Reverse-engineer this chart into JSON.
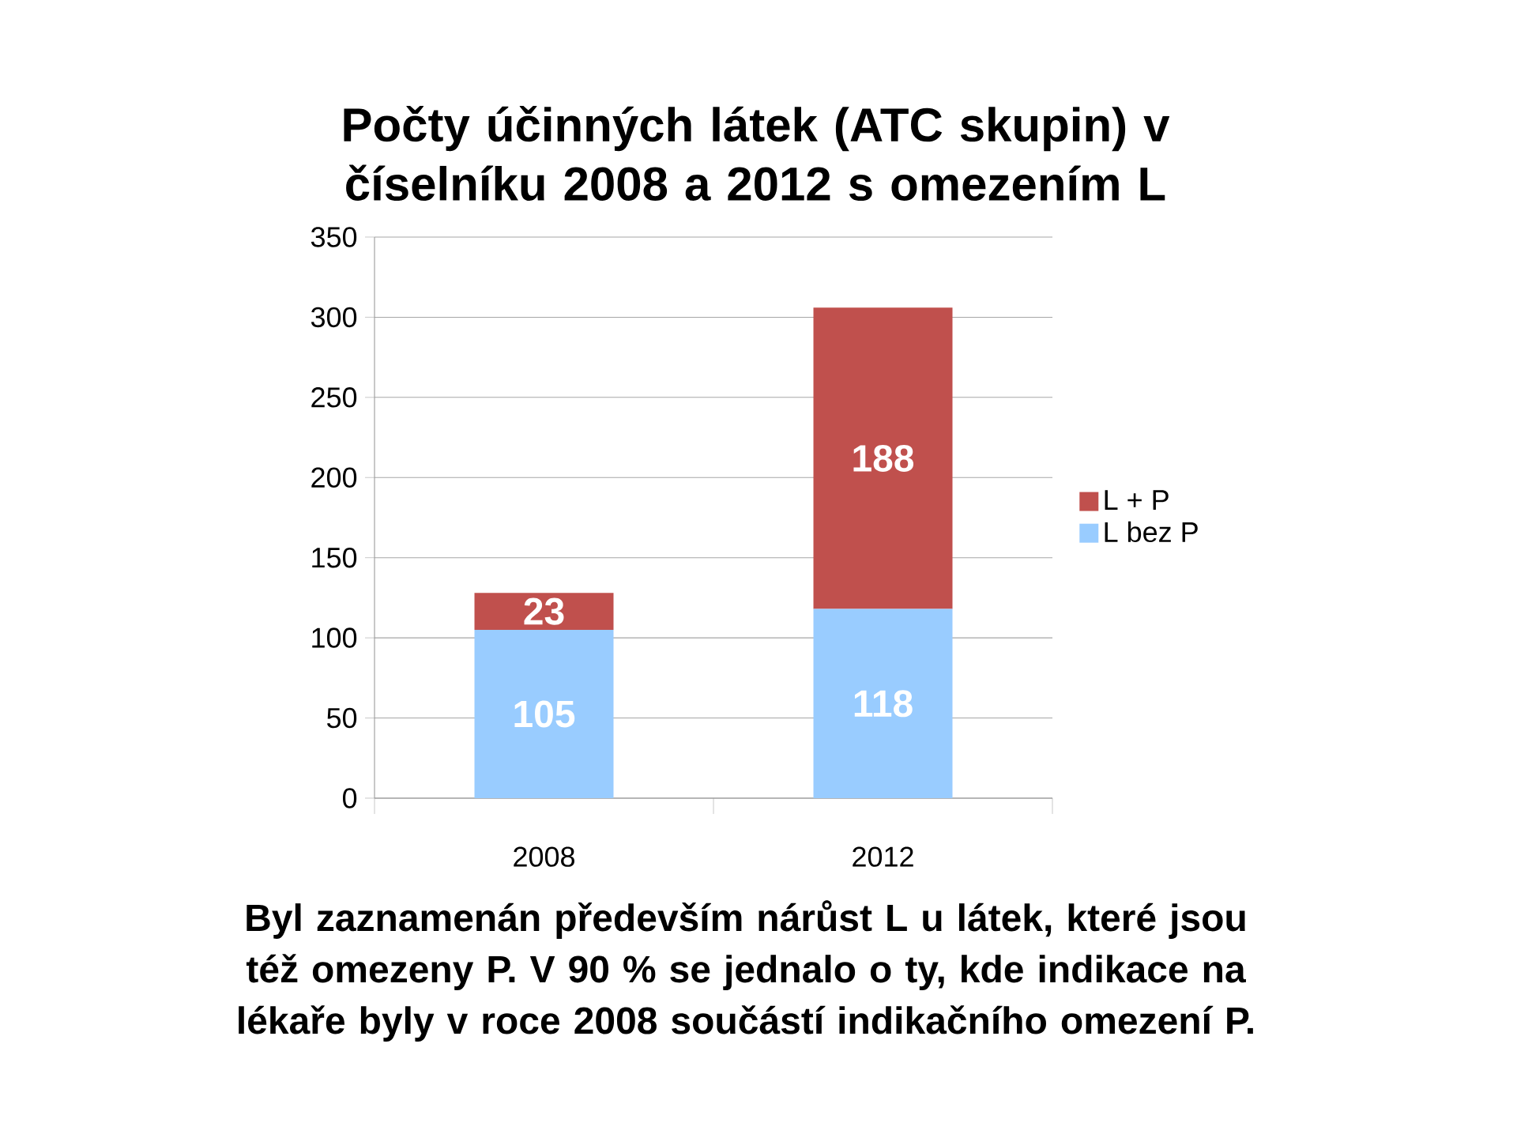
{
  "chart_data": {
    "type": "bar",
    "stacked": true,
    "title": "Počty účinných látek (ATC skupin) v číselníku 2008 a 2012 s omezením L",
    "categories": [
      "2008",
      "2012"
    ],
    "series": [
      {
        "name": "L bez P",
        "color": "#99ccff",
        "values": [
          105,
          118
        ]
      },
      {
        "name": "L + P",
        "color": "#c0504d",
        "values": [
          23,
          188
        ]
      }
    ],
    "ylim": [
      0,
      350
    ],
    "yticks": [
      0,
      50,
      100,
      150,
      200,
      250,
      300,
      350
    ],
    "grid": "y",
    "legend": "right",
    "data_labels": true,
    "annotations": [
      "Byl zaznamenán především nárůst L u látek, které jsou též omezeny P. V 90 % se jednalo o ty, kde indikace na lékaře byly v roce 2008 součástí indikačního omezení P."
    ]
  }
}
